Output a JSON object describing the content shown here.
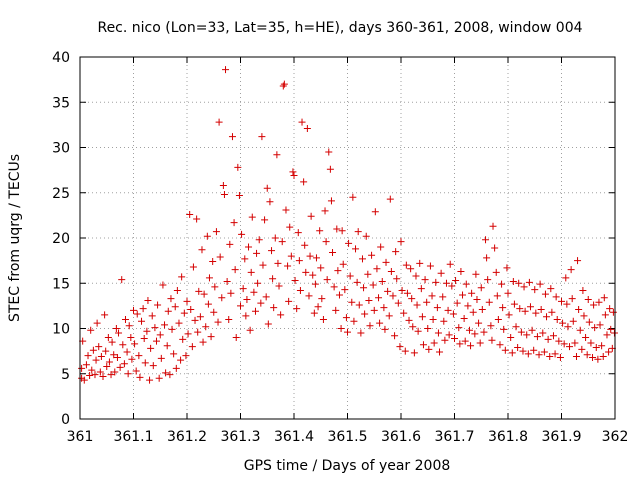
{
  "chart_data": {
    "type": "scatter",
    "title": "Rec. nico (Lon=33, Lat=35, h=HE), days 360-361, 2008, window 004",
    "xlabel": "GPS time / Days of year 2008",
    "ylabel": "STEC from uqrg / TECUs",
    "xlim": [
      361,
      362
    ],
    "ylim": [
      0,
      40
    ],
    "x_ticks": [
      "361",
      "361.1",
      "361.2",
      "361.3",
      "361.4",
      "361.5",
      "361.6",
      "361.7",
      "361.8",
      "361.9",
      "362"
    ],
    "y_ticks": [
      "0",
      "5",
      "10",
      "15",
      "20",
      "25",
      "30",
      "35",
      "40"
    ],
    "grid": true,
    "marker": "+",
    "colors": {
      "points": "#d40000"
    },
    "points": [
      [
        361.003,
        4.5
      ],
      [
        361.003,
        5.6
      ],
      [
        361.005,
        8.6
      ],
      [
        361.008,
        4.3
      ],
      [
        361.012,
        6.0
      ],
      [
        361.015,
        7.0
      ],
      [
        361.018,
        4.8
      ],
      [
        361.02,
        9.8
      ],
      [
        361.022,
        5.4
      ],
      [
        361.025,
        7.6
      ],
      [
        361.028,
        4.9
      ],
      [
        361.03,
        6.5
      ],
      [
        361.032,
        10.6
      ],
      [
        361.035,
        8.0
      ],
      [
        361.038,
        5.2
      ],
      [
        361.04,
        6.9
      ],
      [
        361.043,
        4.7
      ],
      [
        361.046,
        11.5
      ],
      [
        361.048,
        7.5
      ],
      [
        361.05,
        5.8
      ],
      [
        361.053,
        9.0
      ],
      [
        361.055,
        6.3
      ],
      [
        361.058,
        4.9
      ],
      [
        361.06,
        8.5
      ],
      [
        361.063,
        7.1
      ],
      [
        361.065,
        5.2
      ],
      [
        361.068,
        10.0
      ],
      [
        361.07,
        6.8
      ],
      [
        361.072,
        9.5
      ],
      [
        361.075,
        5.7
      ],
      [
        361.078,
        15.4
      ],
      [
        361.08,
        8.2
      ],
      [
        361.083,
        6.1
      ],
      [
        361.085,
        11.0
      ],
      [
        361.088,
        7.4
      ],
      [
        361.09,
        5.0
      ],
      [
        361.092,
        10.3
      ],
      [
        361.095,
        9.0
      ],
      [
        361.097,
        6.6
      ],
      [
        361.1,
        12.0
      ],
      [
        361.102,
        8.3
      ],
      [
        361.105,
        5.3
      ],
      [
        361.107,
        11.6
      ],
      [
        361.11,
        7.0
      ],
      [
        361.112,
        4.6
      ],
      [
        361.115,
        10.8
      ],
      [
        361.118,
        12.2
      ],
      [
        361.12,
        8.9
      ],
      [
        361.122,
        6.2
      ],
      [
        361.125,
        9.7
      ],
      [
        361.127,
        13.1
      ],
      [
        361.13,
        4.3
      ],
      [
        361.132,
        7.8
      ],
      [
        361.135,
        11.4
      ],
      [
        361.137,
        5.9
      ],
      [
        361.14,
        10.1
      ],
      [
        361.143,
        8.6
      ],
      [
        361.145,
        12.6
      ],
      [
        361.148,
        4.5
      ],
      [
        361.15,
        9.3
      ],
      [
        361.152,
        6.7
      ],
      [
        361.155,
        14.8
      ],
      [
        361.158,
        10.4
      ],
      [
        361.16,
        5.1
      ],
      [
        361.163,
        8.1
      ],
      [
        361.165,
        11.9
      ],
      [
        361.168,
        4.9
      ],
      [
        361.17,
        13.3
      ],
      [
        361.172,
        9.9
      ],
      [
        361.175,
        7.2
      ],
      [
        361.178,
        12.4
      ],
      [
        361.18,
        5.6
      ],
      [
        361.182,
        14.2
      ],
      [
        361.185,
        10.6
      ],
      [
        361.188,
        6.5
      ],
      [
        361.19,
        15.7
      ],
      [
        361.192,
        8.8
      ],
      [
        361.195,
        11.7
      ],
      [
        361.198,
        7.0
      ],
      [
        361.2,
        13.0
      ],
      [
        361.202,
        9.4
      ],
      [
        361.205,
        22.6
      ],
      [
        361.207,
        12.1
      ],
      [
        361.21,
        8.0
      ],
      [
        361.212,
        16.8
      ],
      [
        361.215,
        10.9
      ],
      [
        361.218,
        22.1
      ],
      [
        361.22,
        9.6
      ],
      [
        361.222,
        14.1
      ],
      [
        361.225,
        11.3
      ],
      [
        361.228,
        18.7
      ],
      [
        361.23,
        8.5
      ],
      [
        361.232,
        13.8
      ],
      [
        361.235,
        10.2
      ],
      [
        361.238,
        20.2
      ],
      [
        361.24,
        12.7
      ],
      [
        361.242,
        15.6
      ],
      [
        361.245,
        9.1
      ],
      [
        361.248,
        17.4
      ],
      [
        361.25,
        11.8
      ],
      [
        361.252,
        14.6
      ],
      [
        361.255,
        20.7
      ],
      [
        361.258,
        10.7
      ],
      [
        361.26,
        32.8
      ],
      [
        361.262,
        17.9
      ],
      [
        361.265,
        13.4
      ],
      [
        361.268,
        25.8
      ],
      [
        361.27,
        24.8
      ],
      [
        361.272,
        38.6
      ],
      [
        361.275,
        15.2
      ],
      [
        361.278,
        11.0
      ],
      [
        361.28,
        19.3
      ],
      [
        361.282,
        13.9
      ],
      [
        361.285,
        31.2
      ],
      [
        361.288,
        21.7
      ],
      [
        361.29,
        16.5
      ],
      [
        361.292,
        9.0
      ],
      [
        361.295,
        27.8
      ],
      [
        361.298,
        24.7
      ],
      [
        361.3,
        12.5
      ],
      [
        361.302,
        20.4
      ],
      [
        361.305,
        14.4
      ],
      [
        361.308,
        17.7
      ],
      [
        361.31,
        11.4
      ],
      [
        361.312,
        13.2
      ],
      [
        361.315,
        19.0
      ],
      [
        361.318,
        9.8
      ],
      [
        361.32,
        16.2
      ],
      [
        361.322,
        22.3
      ],
      [
        361.325,
        14.0
      ],
      [
        361.328,
        11.9
      ],
      [
        361.33,
        18.3
      ],
      [
        361.332,
        15.0
      ],
      [
        361.335,
        19.8
      ],
      [
        361.338,
        12.8
      ],
      [
        361.34,
        31.2
      ],
      [
        361.342,
        17.0
      ],
      [
        361.345,
        22.0
      ],
      [
        361.348,
        13.5
      ],
      [
        361.35,
        25.5
      ],
      [
        361.352,
        10.5
      ],
      [
        361.355,
        24.0
      ],
      [
        361.358,
        18.6
      ],
      [
        361.36,
        15.5
      ],
      [
        361.362,
        12.3
      ],
      [
        361.365,
        20.0
      ],
      [
        361.368,
        29.2
      ],
      [
        361.37,
        17.2
      ],
      [
        361.372,
        14.7
      ],
      [
        361.375,
        11.5
      ],
      [
        361.378,
        19.6
      ],
      [
        361.38,
        36.8
      ],
      [
        361.382,
        37.0
      ],
      [
        361.385,
        23.1
      ],
      [
        361.388,
        16.9
      ],
      [
        361.39,
        13.0
      ],
      [
        361.392,
        21.2
      ],
      [
        361.395,
        18.0
      ],
      [
        361.398,
        27.3
      ],
      [
        361.4,
        26.9
      ],
      [
        361.402,
        15.3
      ],
      [
        361.405,
        12.2
      ],
      [
        361.408,
        20.6
      ],
      [
        361.41,
        17.5
      ],
      [
        361.412,
        14.2
      ],
      [
        361.415,
        32.8
      ],
      [
        361.418,
        26.2
      ],
      [
        361.42,
        19.2
      ],
      [
        361.422,
        16.2
      ],
      [
        361.425,
        32.1
      ],
      [
        361.428,
        13.6
      ],
      [
        361.43,
        18.0
      ],
      [
        361.432,
        22.4
      ],
      [
        361.435,
        15.9
      ],
      [
        361.438,
        11.7
      ],
      [
        361.44,
        14.9
      ],
      [
        361.442,
        17.8
      ],
      [
        361.445,
        12.4
      ],
      [
        361.448,
        20.8
      ],
      [
        361.45,
        16.7
      ],
      [
        361.452,
        13.3
      ],
      [
        361.455,
        11.0
      ],
      [
        361.458,
        23.0
      ],
      [
        361.46,
        19.6
      ],
      [
        361.462,
        15.4
      ],
      [
        361.465,
        29.5
      ],
      [
        361.468,
        27.6
      ],
      [
        361.47,
        24.1
      ],
      [
        361.472,
        18.4
      ],
      [
        361.475,
        14.6
      ],
      [
        361.478,
        12.0
      ],
      [
        361.48,
        21.0
      ],
      [
        361.482,
        16.4
      ],
      [
        361.485,
        13.7
      ],
      [
        361.488,
        10.0
      ],
      [
        361.49,
        20.8
      ],
      [
        361.492,
        17.1
      ],
      [
        361.495,
        14.3
      ],
      [
        361.498,
        11.2
      ],
      [
        361.5,
        9.6
      ],
      [
        361.502,
        19.4
      ],
      [
        361.505,
        15.8
      ],
      [
        361.508,
        12.9
      ],
      [
        361.51,
        24.5
      ],
      [
        361.512,
        10.8
      ],
      [
        361.515,
        18.8
      ],
      [
        361.518,
        15.1
      ],
      [
        361.52,
        20.7
      ],
      [
        361.522,
        12.6
      ],
      [
        361.525,
        9.5
      ],
      [
        361.528,
        17.7
      ],
      [
        361.53,
        14.5
      ],
      [
        361.532,
        11.6
      ],
      [
        361.535,
        20.2
      ],
      [
        361.538,
        16.0
      ],
      [
        361.54,
        13.1
      ],
      [
        361.542,
        10.3
      ],
      [
        361.545,
        18.1
      ],
      [
        361.548,
        14.8
      ],
      [
        361.55,
        12.0
      ],
      [
        361.552,
        22.9
      ],
      [
        361.555,
        16.6
      ],
      [
        361.558,
        13.4
      ],
      [
        361.56,
        10.6
      ],
      [
        361.562,
        19.0
      ],
      [
        361.565,
        15.2
      ],
      [
        361.568,
        12.3
      ],
      [
        361.57,
        9.9
      ],
      [
        361.572,
        17.3
      ],
      [
        361.575,
        14.1
      ],
      [
        361.578,
        11.4
      ],
      [
        361.58,
        24.3
      ],
      [
        361.582,
        16.3
      ],
      [
        361.585,
        13.6
      ],
      [
        361.588,
        9.2
      ],
      [
        361.59,
        18.5
      ],
      [
        361.592,
        15.5
      ],
      [
        361.595,
        12.8
      ],
      [
        361.598,
        8.0
      ],
      [
        361.6,
        19.6
      ],
      [
        361.602,
        14.2
      ],
      [
        361.605,
        11.7
      ],
      [
        361.608,
        7.5
      ],
      [
        361.61,
        17.0
      ],
      [
        361.612,
        13.9
      ],
      [
        361.615,
        10.9
      ],
      [
        361.618,
        16.6
      ],
      [
        361.62,
        13.3
      ],
      [
        361.622,
        10.2
      ],
      [
        361.625,
        7.3
      ],
      [
        361.628,
        15.8
      ],
      [
        361.63,
        12.6
      ],
      [
        361.632,
        9.7
      ],
      [
        361.635,
        17.2
      ],
      [
        361.638,
        14.4
      ],
      [
        361.64,
        11.3
      ],
      [
        361.642,
        8.2
      ],
      [
        361.645,
        15.4
      ],
      [
        361.648,
        12.9
      ],
      [
        361.65,
        10.0
      ],
      [
        361.652,
        7.7
      ],
      [
        361.655,
        16.9
      ],
      [
        361.658,
        13.6
      ],
      [
        361.66,
        11.0
      ],
      [
        361.662,
        8.4
      ],
      [
        361.665,
        15.1
      ],
      [
        361.668,
        12.3
      ],
      [
        361.67,
        9.5
      ],
      [
        361.672,
        7.4
      ],
      [
        361.675,
        16.1
      ],
      [
        361.678,
        13.5
      ],
      [
        361.68,
        10.8
      ],
      [
        361.682,
        8.7
      ],
      [
        361.685,
        15.0
      ],
      [
        361.688,
        12.0
      ],
      [
        361.69,
        9.3
      ],
      [
        361.692,
        17.1
      ],
      [
        361.695,
        14.7
      ],
      [
        361.698,
        11.6
      ],
      [
        361.7,
        8.9
      ],
      [
        361.702,
        15.3
      ],
      [
        361.705,
        12.8
      ],
      [
        361.708,
        10.1
      ],
      [
        361.71,
        8.3
      ],
      [
        361.712,
        16.3
      ],
      [
        361.715,
        13.7
      ],
      [
        361.718,
        11.1
      ],
      [
        361.72,
        8.6
      ],
      [
        361.722,
        14.9
      ],
      [
        361.725,
        12.5
      ],
      [
        361.728,
        9.8
      ],
      [
        361.73,
        8.1
      ],
      [
        361.732,
        13.9
      ],
      [
        361.735,
        11.8
      ],
      [
        361.738,
        9.4
      ],
      [
        361.74,
        16.0
      ],
      [
        361.742,
        13.2
      ],
      [
        361.745,
        10.6
      ],
      [
        361.748,
        8.4
      ],
      [
        361.75,
        14.5
      ],
      [
        361.752,
        12.1
      ],
      [
        361.755,
        9.6
      ],
      [
        361.758,
        19.8
      ],
      [
        361.76,
        17.8
      ],
      [
        361.762,
        15.4
      ],
      [
        361.765,
        12.9
      ],
      [
        361.768,
        10.3
      ],
      [
        361.77,
        8.7
      ],
      [
        361.772,
        21.3
      ],
      [
        361.775,
        18.9
      ],
      [
        361.778,
        16.2
      ],
      [
        361.78,
        13.6
      ],
      [
        361.782,
        11.0
      ],
      [
        361.785,
        8.2
      ],
      [
        361.788,
        14.9
      ],
      [
        361.79,
        12.3
      ],
      [
        361.792,
        9.9
      ],
      [
        361.795,
        7.6
      ],
      [
        361.798,
        16.7
      ],
      [
        361.8,
        13.9
      ],
      [
        361.802,
        11.5
      ],
      [
        361.805,
        9.0
      ],
      [
        361.808,
        7.3
      ],
      [
        361.81,
        15.2
      ],
      [
        361.812,
        12.7
      ],
      [
        361.815,
        10.2
      ],
      [
        361.818,
        7.9
      ],
      [
        361.82,
        15.0
      ],
      [
        361.822,
        12.2
      ],
      [
        361.825,
        9.6
      ],
      [
        361.828,
        7.5
      ],
      [
        361.83,
        14.6
      ],
      [
        361.832,
        11.9
      ],
      [
        361.835,
        9.3
      ],
      [
        361.838,
        7.2
      ],
      [
        361.84,
        15.1
      ],
      [
        361.842,
        12.4
      ],
      [
        361.845,
        9.8
      ],
      [
        361.848,
        7.6
      ],
      [
        361.85,
        14.3
      ],
      [
        361.852,
        11.7
      ],
      [
        361.855,
        9.1
      ],
      [
        361.858,
        7.1
      ],
      [
        361.86,
        14.9
      ],
      [
        361.862,
        12.1
      ],
      [
        361.865,
        9.5
      ],
      [
        361.868,
        7.4
      ],
      [
        361.87,
        13.8
      ],
      [
        361.872,
        11.3
      ],
      [
        361.875,
        8.8
      ],
      [
        361.878,
        6.9
      ],
      [
        361.88,
        14.4
      ],
      [
        361.882,
        11.8
      ],
      [
        361.885,
        9.2
      ],
      [
        361.888,
        7.2
      ],
      [
        361.89,
        13.5
      ],
      [
        361.892,
        11.0
      ],
      [
        361.895,
        8.6
      ],
      [
        361.898,
        6.8
      ],
      [
        361.9,
        13.0
      ],
      [
        361.902,
        10.6
      ],
      [
        361.905,
        8.3
      ],
      [
        361.908,
        15.6
      ],
      [
        361.91,
        12.7
      ],
      [
        361.912,
        10.2
      ],
      [
        361.915,
        8.0
      ],
      [
        361.918,
        16.5
      ],
      [
        361.92,
        13.3
      ],
      [
        361.922,
        10.8
      ],
      [
        361.925,
        8.4
      ],
      [
        361.928,
        6.9
      ],
      [
        361.93,
        17.5
      ],
      [
        361.932,
        12.1
      ],
      [
        361.935,
        9.8
      ],
      [
        361.938,
        7.7
      ],
      [
        361.94,
        14.2
      ],
      [
        361.942,
        11.4
      ],
      [
        361.945,
        9.0
      ],
      [
        361.948,
        7.1
      ],
      [
        361.95,
        13.2
      ],
      [
        361.952,
        10.7
      ],
      [
        361.955,
        8.4
      ],
      [
        361.958,
        6.8
      ],
      [
        361.96,
        12.6
      ],
      [
        361.962,
        10.1
      ],
      [
        361.965,
        7.9
      ],
      [
        361.968,
        6.6
      ],
      [
        361.97,
        12.9
      ],
      [
        361.972,
        10.4
      ],
      [
        361.975,
        8.1
      ],
      [
        361.978,
        6.9
      ],
      [
        361.98,
        13.4
      ],
      [
        361.982,
        11.5
      ],
      [
        361.985,
        9.3
      ],
      [
        361.988,
        7.4
      ],
      [
        361.99,
        12.2
      ],
      [
        361.992,
        9.9
      ],
      [
        361.995,
        7.8
      ],
      [
        361.997,
        11.8
      ],
      [
        361.999,
        9.5
      ]
    ]
  }
}
